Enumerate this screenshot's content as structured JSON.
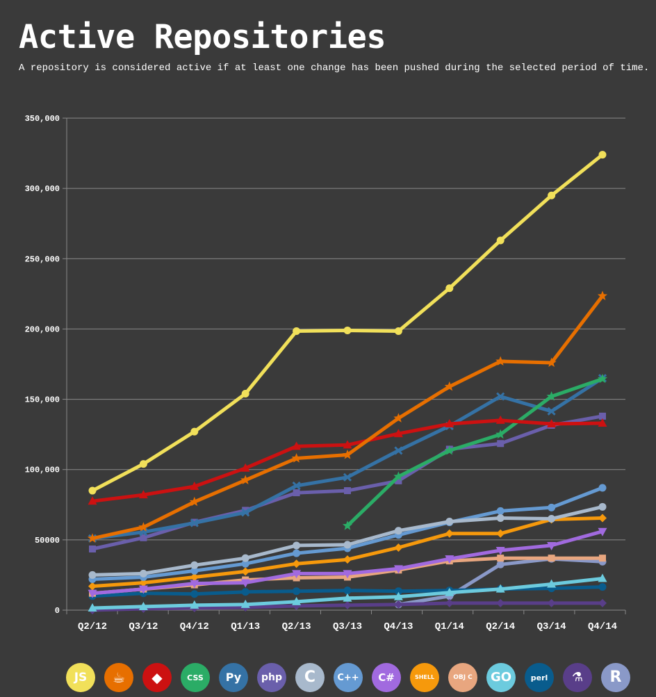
{
  "header": {
    "title": "Active Repositories",
    "subtitle": "A repository is considered active if at least one change has been pushed during the selected period of time."
  },
  "chart_data": {
    "type": "line",
    "title": "Active Repositories",
    "subtitle": "A repository is considered active if at least one change has been pushed during the selected period of time.",
    "xlabel": "",
    "ylabel": "",
    "ylim": [
      0,
      350000
    ],
    "grid": true,
    "legend": "bottom",
    "categories": [
      "Q2/12",
      "Q3/12",
      "Q4/12",
      "Q1/13",
      "Q2/13",
      "Q3/13",
      "Q4/13",
      "Q1/14",
      "Q2/14",
      "Q3/14",
      "Q4/14"
    ],
    "y_ticks": [
      "0",
      "50000",
      "100,000",
      "150,000",
      "200,000",
      "250,000",
      "300,000",
      "350,000"
    ],
    "series": [
      {
        "id": "javascript",
        "color": "#f1e05a",
        "marker": "circle",
        "values": [
          85000,
          104000,
          127000,
          154000,
          198500,
          199000,
          198500,
          229000,
          263000,
          295000,
          324000
        ]
      },
      {
        "id": "java",
        "color": "#e76f00",
        "marker": "star",
        "values": [
          51000,
          59000,
          77000,
          92500,
          108000,
          110500,
          136500,
          159000,
          177000,
          176000,
          223500
        ]
      },
      {
        "id": "ruby",
        "color": "#cc1111",
        "marker": "triangle-up",
        "values": [
          77500,
          82000,
          88000,
          101000,
          116500,
          117500,
          125500,
          132500,
          135000,
          132500,
          133000
        ]
      },
      {
        "id": "css",
        "color": "#2bac66",
        "marker": "star",
        "values": [
          null,
          null,
          null,
          null,
          null,
          60000,
          95000,
          113500,
          125000,
          152000,
          164500
        ]
      },
      {
        "id": "python",
        "color": "#3572a5",
        "marker": "x",
        "values": [
          51000,
          55500,
          62000,
          69500,
          88500,
          94500,
          113500,
          131000,
          152000,
          141500,
          165000
        ]
      },
      {
        "id": "php",
        "color": "#6a5fab",
        "marker": "square",
        "values": [
          43500,
          51500,
          62500,
          71000,
          83500,
          85000,
          92000,
          114500,
          118500,
          131500,
          138000
        ]
      },
      {
        "id": "c",
        "color": "#a8b9cc",
        "marker": "circle",
        "values": [
          25000,
          26000,
          32000,
          37000,
          46000,
          46500,
          56500,
          63000,
          65500,
          65000,
          73500
        ]
      },
      {
        "id": "cpp",
        "color": "#659ad2",
        "marker": "circle",
        "values": [
          22000,
          23500,
          28000,
          33000,
          40500,
          44000,
          53500,
          62500,
          70500,
          73000,
          87000
        ]
      },
      {
        "id": "csharp",
        "color": "#a16adf",
        "marker": "triangle-down",
        "values": [
          12000,
          15000,
          19000,
          19500,
          26000,
          26000,
          29500,
          36500,
          42500,
          46000,
          56000
        ]
      },
      {
        "id": "shell",
        "color": "#f6990c",
        "marker": "diamond",
        "values": [
          17000,
          19500,
          23500,
          27500,
          33000,
          36000,
          44500,
          54500,
          54500,
          64500,
          65500
        ]
      },
      {
        "id": "objective-c",
        "color": "#e8a67f",
        "marker": "square",
        "values": [
          12000,
          15000,
          18000,
          21500,
          23000,
          23500,
          28500,
          35000,
          37000,
          37000,
          37000
        ]
      },
      {
        "id": "go",
        "color": "#6ccbde",
        "marker": "triangle-up",
        "values": [
          1500,
          2500,
          3500,
          4000,
          6000,
          8500,
          9500,
          12500,
          15000,
          18500,
          22500
        ]
      },
      {
        "id": "perl",
        "color": "#095c8d",
        "marker": "circle",
        "values": [
          10000,
          12000,
          11500,
          13000,
          13500,
          14000,
          13500,
          14000,
          15000,
          15500,
          16500
        ]
      },
      {
        "id": "scala",
        "color": "#593e89",
        "marker": "diamond",
        "values": [
          0,
          1000,
          1500,
          2000,
          3000,
          3500,
          4000,
          5000,
          5000,
          5000,
          5000
        ]
      },
      {
        "id": "r",
        "color": "#8a99c8",
        "marker": "circle",
        "values": [
          null,
          null,
          null,
          null,
          null,
          null,
          4000,
          10000,
          32500,
          36500,
          34500
        ]
      }
    ]
  },
  "legend": [
    {
      "icon": "javascript-icon",
      "glyph": "JS",
      "bg": "#f1e05a",
      "fg": "#ffffff",
      "size": 17
    },
    {
      "icon": "java-icon",
      "glyph": "☕",
      "bg": "#e76f00",
      "fg": "#ffffff",
      "size": 20
    },
    {
      "icon": "ruby-icon",
      "glyph": "◆",
      "bg": "#cc1111",
      "fg": "#ffffff",
      "size": 20
    },
    {
      "icon": "css-icon",
      "glyph": "CSS",
      "bg": "#2bac66",
      "fg": "#ffffff",
      "size": 11
    },
    {
      "icon": "python-icon",
      "glyph": "Py",
      "bg": "#3572a5",
      "fg": "#ffffff",
      "size": 16
    },
    {
      "icon": "php-icon",
      "glyph": "php",
      "bg": "#6a5fab",
      "fg": "#ffffff",
      "size": 14
    },
    {
      "icon": "c-icon",
      "glyph": "C",
      "bg": "#a8b9cc",
      "fg": "#ffffff",
      "size": 22
    },
    {
      "icon": "cpp-icon",
      "glyph": "C++",
      "bg": "#659ad2",
      "fg": "#ffffff",
      "size": 13
    },
    {
      "icon": "csharp-icon",
      "glyph": "C#",
      "bg": "#a16adf",
      "fg": "#ffffff",
      "size": 15
    },
    {
      "icon": "shell-icon",
      "glyph": "SHELL",
      "bg": "#f6990c",
      "fg": "#ffffff",
      "size": 8
    },
    {
      "icon": "objective-c-icon",
      "glyph": "OBJ C",
      "bg": "#e8a67f",
      "fg": "#ffffff",
      "size": 9
    },
    {
      "icon": "go-icon",
      "glyph": "GO",
      "bg": "#6ccbde",
      "fg": "#ffffff",
      "size": 18
    },
    {
      "icon": "perl-icon",
      "glyph": "perl",
      "bg": "#095c8d",
      "fg": "#ffffff",
      "size": 11
    },
    {
      "icon": "scala-icon",
      "glyph": "⚗",
      "bg": "#593e89",
      "fg": "#ffffff",
      "size": 18
    },
    {
      "icon": "r-icon",
      "glyph": "R",
      "bg": "#8a99c8",
      "fg": "#ffffff",
      "size": 22
    }
  ]
}
